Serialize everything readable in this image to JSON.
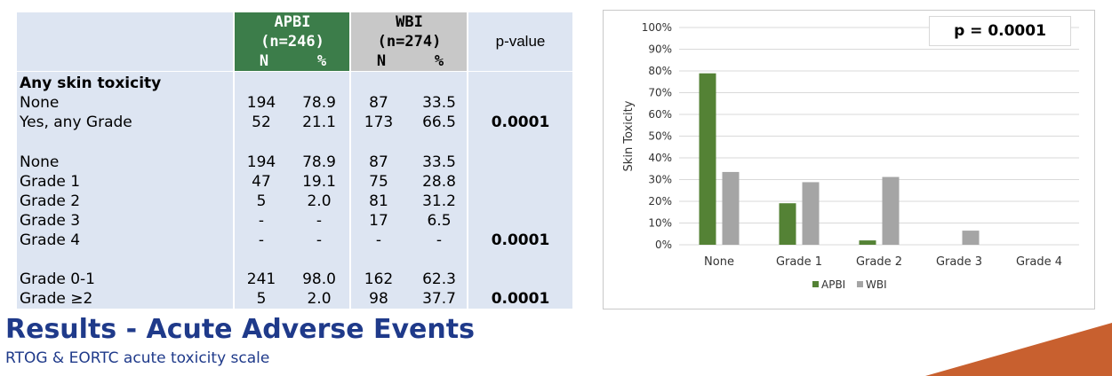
{
  "table": {
    "header": {
      "apbi_name": "APBI",
      "apbi_n": "(n=246)",
      "wbi_name": "WBI",
      "wbi_n": "(n=274)",
      "sub_n": "N",
      "sub_pct": "%",
      "pvalue": "p-value"
    },
    "rows": [
      {
        "label": "Any skin toxicity",
        "bold": true,
        "apbi_n": "",
        "apbi_pct": "",
        "wbi_n": "",
        "wbi_pct": "",
        "p": ""
      },
      {
        "label": "None",
        "apbi_n": "194",
        "apbi_pct": "78.9",
        "wbi_n": "87",
        "wbi_pct": "33.5",
        "p": ""
      },
      {
        "label": "Yes, any Grade",
        "apbi_n": "52",
        "apbi_pct": "21.1",
        "wbi_n": "173",
        "wbi_pct": "66.5",
        "p": "0.0001"
      },
      {
        "label": "None",
        "apbi_n": "194",
        "apbi_pct": "78.9",
        "wbi_n": "87",
        "wbi_pct": "33.5",
        "p": ""
      },
      {
        "label": "Grade 1",
        "apbi_n": "47",
        "apbi_pct": "19.1",
        "wbi_n": "75",
        "wbi_pct": "28.8",
        "p": ""
      },
      {
        "label": "Grade 2",
        "apbi_n": "5",
        "apbi_pct": "2.0",
        "wbi_n": "81",
        "wbi_pct": "31.2",
        "p": ""
      },
      {
        "label": "Grade 3",
        "apbi_n": "-",
        "apbi_pct": "-",
        "wbi_n": "17",
        "wbi_pct": "6.5",
        "p": ""
      },
      {
        "label": "Grade 4",
        "apbi_n": "-",
        "apbi_pct": "-",
        "wbi_n": "-",
        "wbi_pct": "-",
        "p": "0.0001"
      },
      {
        "label": "Grade 0-1",
        "apbi_n": "241",
        "apbi_pct": "98.0",
        "wbi_n": "162",
        "wbi_pct": "62.3",
        "p": ""
      },
      {
        "label": "Grade ≥2",
        "apbi_n": "5",
        "apbi_pct": "2.0",
        "wbi_n": "98",
        "wbi_pct": "37.7",
        "p": "0.0001"
      }
    ]
  },
  "page": {
    "title": "Results - Acute Adverse Events",
    "subtitle": "RTOG & EORTC acute toxicity scale"
  },
  "chart_data": {
    "type": "bar",
    "categories": [
      "None",
      "Grade 1",
      "Grade 2",
      "Grade 3",
      "Grade 4"
    ],
    "series": [
      {
        "name": "APBI",
        "values": [
          78.9,
          19.1,
          2.0,
          0,
          0
        ],
        "color": "#548235"
      },
      {
        "name": "WBI",
        "values": [
          33.5,
          28.8,
          31.2,
          6.5,
          0
        ],
        "color": "#a5a5a5"
      }
    ],
    "ylabel": "Skin Toxicity",
    "ylim": [
      0,
      100
    ],
    "yticks": [
      "0%",
      "10%",
      "20%",
      "30%",
      "40%",
      "50%",
      "60%",
      "70%",
      "80%",
      "90%",
      "100%"
    ],
    "annotation": "p = 0.0001",
    "grid": true,
    "legend_position": "bottom"
  },
  "colors": {
    "apbi_header": "#3c7d4a",
    "wbi_header": "#c8c8c8",
    "table_bg": "#dde5f2",
    "title": "#1f3a8a",
    "accent": "#c8602f"
  }
}
